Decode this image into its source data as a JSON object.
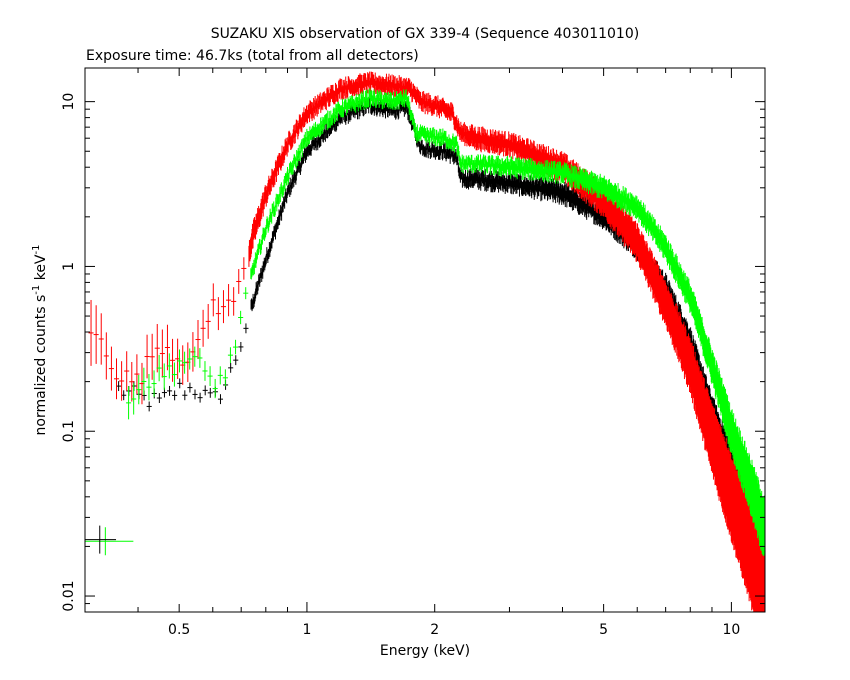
{
  "chart_data": {
    "type": "scatter",
    "title": "SUZAKU XIS observation of GX 339-4 (Sequence 403011010)",
    "subtitle": "Exposure time: 46.7ks (total from all detectors)",
    "xlabel": "Energy (keV)",
    "ylabel_main": "normalized counts s",
    "ylabel_mid": " keV",
    "ylabel_sup": "-1",
    "x_scale": "log",
    "y_scale": "log",
    "xlim": [
      0.3,
      12
    ],
    "ylim": [
      0.008,
      16
    ],
    "x_ticks": [
      {
        "value": 0.5,
        "label": "0.5"
      },
      {
        "value": 1,
        "label": "1"
      },
      {
        "value": 2,
        "label": "2"
      },
      {
        "value": 5,
        "label": "5"
      },
      {
        "value": 10,
        "label": "10"
      }
    ],
    "y_ticks": [
      {
        "value": 0.01,
        "label": "0.01"
      },
      {
        "value": 0.1,
        "label": "0.1"
      },
      {
        "value": 1,
        "label": "1"
      },
      {
        "value": 10,
        "label": "10"
      }
    ],
    "legend": "none",
    "grid": false,
    "series": [
      {
        "color": "#000000",
        "x": [
          0.36,
          0.4,
          0.45,
          0.5,
          0.55,
          0.6,
          0.65,
          0.7,
          0.8,
          0.9,
          1.0,
          1.2,
          1.4,
          1.6,
          1.72,
          1.84,
          1.9,
          2.1,
          2.25,
          2.3,
          2.5,
          3.0,
          4.0,
          5.0,
          6.0,
          7.0,
          8.0,
          9.0,
          10.0,
          11.0,
          12.0
        ],
        "y": [
          0.18,
          0.16,
          0.15,
          0.18,
          0.18,
          0.15,
          0.2,
          0.35,
          1.1,
          2.8,
          5.0,
          8.0,
          9.5,
          8.8,
          9.2,
          5.5,
          5.2,
          5.0,
          4.6,
          3.4,
          3.4,
          3.2,
          2.8,
          2.0,
          1.3,
          0.75,
          0.35,
          0.13,
          0.06,
          0.04,
          0.02
        ],
        "err": [
          0.03,
          0.03,
          0.03,
          0.03,
          0.03,
          0.03,
          0.03,
          0.03,
          0.03,
          0.03,
          0.03,
          0.03,
          0.03,
          0.03,
          0.03,
          0.03,
          0.03,
          0.03,
          0.03,
          0.03,
          0.04,
          0.04,
          0.05,
          0.05,
          0.05,
          0.06,
          0.07,
          0.09,
          0.12,
          0.16,
          0.2
        ]
      },
      {
        "color": "#ff0000",
        "x": [
          0.31,
          0.33,
          0.36,
          0.4,
          0.45,
          0.5,
          0.55,
          0.6,
          0.65,
          0.7,
          0.75,
          0.8,
          0.9,
          1.0,
          1.2,
          1.4,
          1.6,
          1.75,
          1.85,
          2.0,
          2.2,
          2.3,
          2.5,
          3.0,
          4.0,
          5.0,
          6.0,
          7.0,
          8.0,
          9.0,
          10.0,
          11.0,
          12.0
        ],
        "y": [
          0.4,
          0.34,
          0.22,
          0.2,
          0.35,
          0.28,
          0.3,
          0.6,
          0.55,
          0.8,
          1.6,
          2.7,
          5.5,
          8.5,
          12.0,
          13.0,
          12.5,
          12.0,
          10.0,
          9.5,
          8.5,
          6.5,
          6.0,
          5.5,
          4.0,
          2.5,
          1.4,
          0.6,
          0.25,
          0.09,
          0.04,
          0.02,
          0.01
        ],
        "err": [
          0.2,
          0.15,
          0.12,
          0.12,
          0.15,
          0.12,
          0.12,
          0.1,
          0.1,
          0.07,
          0.06,
          0.05,
          0.04,
          0.04,
          0.04,
          0.04,
          0.04,
          0.04,
          0.04,
          0.04,
          0.04,
          0.04,
          0.05,
          0.05,
          0.07,
          0.08,
          0.1,
          0.12,
          0.15,
          0.2,
          0.25,
          0.3,
          0.4
        ]
      },
      {
        "color": "#00ff00",
        "x": [
          0.38,
          0.42,
          0.46,
          0.5,
          0.55,
          0.6,
          0.65,
          0.7,
          0.75,
          0.8,
          0.9,
          1.0,
          1.2,
          1.4,
          1.6,
          1.72,
          1.8,
          1.9,
          2.1,
          2.25,
          2.3,
          2.5,
          3.0,
          4.0,
          5.0,
          6.0,
          7.0,
          8.0,
          9.0,
          10.0,
          11.0,
          12.0
        ],
        "y": [
          0.17,
          0.2,
          0.22,
          0.27,
          0.26,
          0.2,
          0.22,
          0.5,
          1.0,
          1.7,
          3.5,
          6.0,
          9.0,
          10.5,
          10.0,
          10.5,
          6.5,
          6.2,
          6.0,
          5.5,
          4.2,
          4.2,
          4.0,
          3.7,
          3.0,
          2.3,
          1.3,
          0.65,
          0.25,
          0.1,
          0.05,
          0.025
        ],
        "err": [
          0.1,
          0.08,
          0.08,
          0.07,
          0.06,
          0.06,
          0.05,
          0.04,
          0.03,
          0.03,
          0.03,
          0.03,
          0.03,
          0.03,
          0.03,
          0.03,
          0.03,
          0.03,
          0.03,
          0.03,
          0.03,
          0.03,
          0.04,
          0.04,
          0.05,
          0.05,
          0.06,
          0.07,
          0.09,
          0.12,
          0.15,
          0.18
        ]
      }
    ],
    "annotations": [
      {
        "color": "#00ff00",
        "x": 0.335,
        "y": 0.0215,
        "xerr": [
          0.29,
          0.39
        ]
      },
      {
        "color": "#000000",
        "x": 0.325,
        "y": 0.022,
        "xerr": [
          0.29,
          0.355
        ]
      }
    ]
  }
}
